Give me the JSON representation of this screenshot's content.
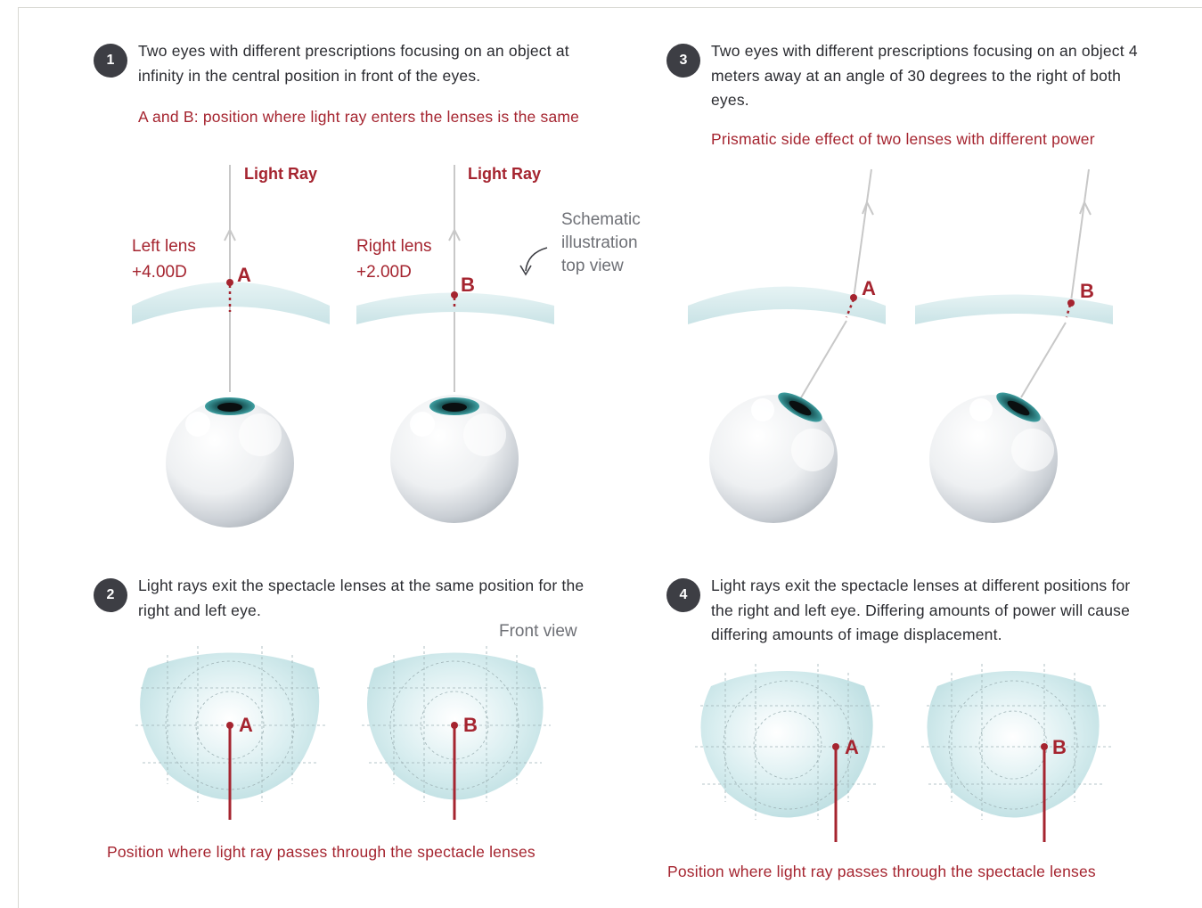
{
  "colors": {
    "accent_red": "#a5242f",
    "badge_bg": "#3d3e44",
    "body_text": "#2a2b30",
    "lens_fill": "#d6ecee",
    "light_ray": "#c8c8c8"
  },
  "panel1": {
    "number": "1",
    "caption": "Two eyes with different prescriptions focusing on an object at infinity in the central position in front of the eyes.",
    "note": "A and B: position where light ray enters the lenses is the same",
    "ray_label_left": "Light Ray",
    "ray_label_right": "Light Ray",
    "left_lens_name": "Left lens",
    "left_lens_power": "+4.00D",
    "right_lens_name": "Right lens",
    "right_lens_power": "+2.00D",
    "point_a": "A",
    "point_b": "B",
    "schematic_note": "Schematic illustration top view"
  },
  "panel2": {
    "number": "2",
    "caption": "Light rays exit the spectacle lenses at the same position for the right and left eye.",
    "view_label": "Front view",
    "point_a": "A",
    "point_b": "B",
    "footer": "Position where light ray passes through the spectacle lenses"
  },
  "panel3": {
    "number": "3",
    "caption": "Two eyes with different prescriptions focusing on an object 4 meters away at an angle of 30 degrees to the right of both eyes.",
    "note": "Prismatic side effect of two lenses with different power",
    "point_a": "A",
    "point_b": "B"
  },
  "panel4": {
    "number": "4",
    "caption": "Light rays exit the spectacle lenses at different positions for the right and left eye. Differing amounts of power will cause differing amounts of image displacement.",
    "point_a": "A",
    "point_b": "B",
    "footer": "Position where light ray passes through the spectacle lenses"
  }
}
